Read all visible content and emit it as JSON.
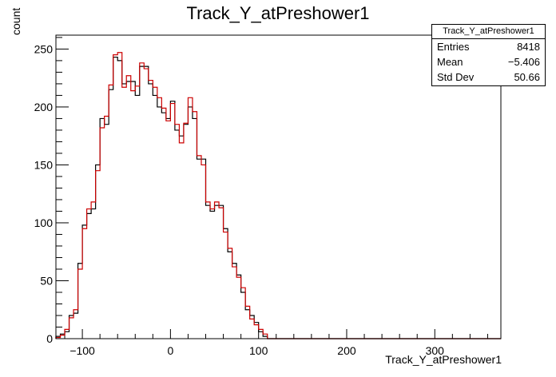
{
  "chart_data": {
    "type": "histogram",
    "title": "Track_Y_atPreshower1",
    "xlabel": "Track_Y_atPreshower1",
    "ylabel": "count",
    "xlim": [
      -130,
      375
    ],
    "ylim": [
      0,
      262
    ],
    "xticks": [
      -100,
      0,
      100,
      200,
      300
    ],
    "yticks": [
      0,
      50,
      100,
      150,
      200,
      250
    ],
    "bin_width": 5,
    "grid": false,
    "series": [
      {
        "color": "#000000",
        "bin_starts": [
          -130,
          -125,
          -120,
          -115,
          -110,
          -105,
          -100,
          -95,
          -90,
          -85,
          -80,
          -75,
          -70,
          -65,
          -60,
          -55,
          -50,
          -45,
          -40,
          -35,
          -30,
          -25,
          -20,
          -15,
          -10,
          -5,
          0,
          5,
          10,
          15,
          20,
          25,
          30,
          35,
          40,
          45,
          50,
          55,
          60,
          65,
          70,
          75,
          80,
          85,
          90,
          95,
          100,
          105,
          110,
          115,
          120,
          125,
          130
        ],
        "counts": [
          2,
          4,
          6,
          20,
          22,
          65,
          98,
          108,
          112,
          150,
          190,
          185,
          215,
          243,
          240,
          220,
          222,
          222,
          210,
          235,
          235,
          220,
          210,
          200,
          195,
          190,
          205,
          180,
          175,
          185,
          200,
          190,
          155,
          155,
          115,
          110,
          115,
          115,
          95,
          75,
          65,
          55,
          40,
          25,
          20,
          14,
          6,
          2,
          0,
          0,
          0,
          0,
          0
        ]
      },
      {
        "color": "#cc0000",
        "bin_starts": [
          -130,
          -125,
          -120,
          -115,
          -110,
          -105,
          -100,
          -95,
          -90,
          -85,
          -80,
          -75,
          -70,
          -65,
          -60,
          -55,
          -50,
          -45,
          -40,
          -35,
          -30,
          -25,
          -20,
          -15,
          -10,
          -5,
          0,
          5,
          10,
          15,
          20,
          25,
          30,
          35,
          40,
          45,
          50,
          55,
          60,
          65,
          70,
          75,
          80,
          85,
          90,
          95,
          100,
          105,
          110,
          115,
          120,
          125,
          130
        ],
        "counts": [
          1,
          3,
          8,
          18,
          25,
          60,
          95,
          112,
          118,
          145,
          182,
          192,
          219,
          245,
          247,
          217,
          227,
          214,
          218,
          238,
          233,
          223,
          217,
          208,
          199,
          188,
          203,
          185,
          169,
          186,
          208,
          196,
          158,
          150,
          118,
          112,
          118,
          113,
          92,
          78,
          62,
          53,
          44,
          28,
          17,
          12,
          8,
          4,
          0,
          0,
          0,
          0,
          0
        ]
      }
    ]
  },
  "stats": {
    "name": "Track_Y_atPreshower1",
    "rows": [
      {
        "label": "Entries",
        "value": "8418"
      },
      {
        "label": "Mean",
        "value": "−5.406"
      },
      {
        "label": "Std Dev",
        "value": "50.66"
      }
    ]
  }
}
